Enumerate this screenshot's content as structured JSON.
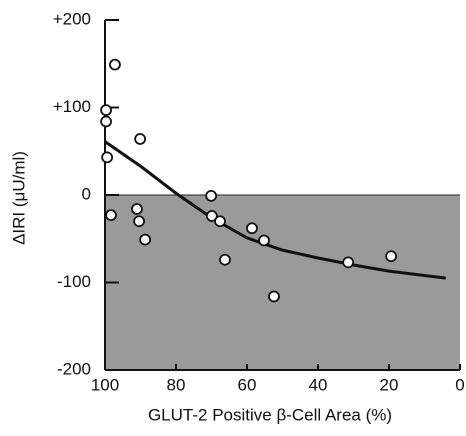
{
  "chart_data": {
    "type": "scatter",
    "x_label": "GLUT-2 Positive β-Cell Area (%)",
    "y_label": "ΔIRI (μU/ml)",
    "xlim": [
      100,
      0
    ],
    "xticks": [
      100,
      80,
      60,
      40,
      20,
      0
    ],
    "ylim": [
      -200,
      200
    ],
    "yticks": [
      {
        "value": 200,
        "label": "+200"
      },
      {
        "value": 100,
        "label": "+100"
      },
      0,
      -100,
      -200
    ],
    "shade_color": "#9a9a9a",
    "series": [
      {
        "color": "#ffffff",
        "x": [
          97.2,
          99.7,
          99.7,
          99.4,
          98.3,
          90.1,
          91,
          90.4,
          88.7,
          70.1,
          69.9,
          67.6,
          66.2,
          58.6,
          55.2,
          52.4,
          31.5,
          19.4
        ],
        "values": [
          149,
          97,
          84,
          43,
          -23,
          64,
          -16,
          -30,
          -51,
          -1,
          -24,
          -30,
          -74,
          -38,
          -52,
          -116,
          -77,
          -70
        ]
      }
    ],
    "curve": {
      "color": "#111111",
      "x": [
        100,
        90,
        80,
        70,
        60,
        50,
        40,
        30,
        20,
        10,
        4
      ],
      "values": [
        61,
        33,
        2,
        -26,
        -49,
        -63,
        -72,
        -80,
        -87,
        -92,
        -95
      ]
    }
  }
}
